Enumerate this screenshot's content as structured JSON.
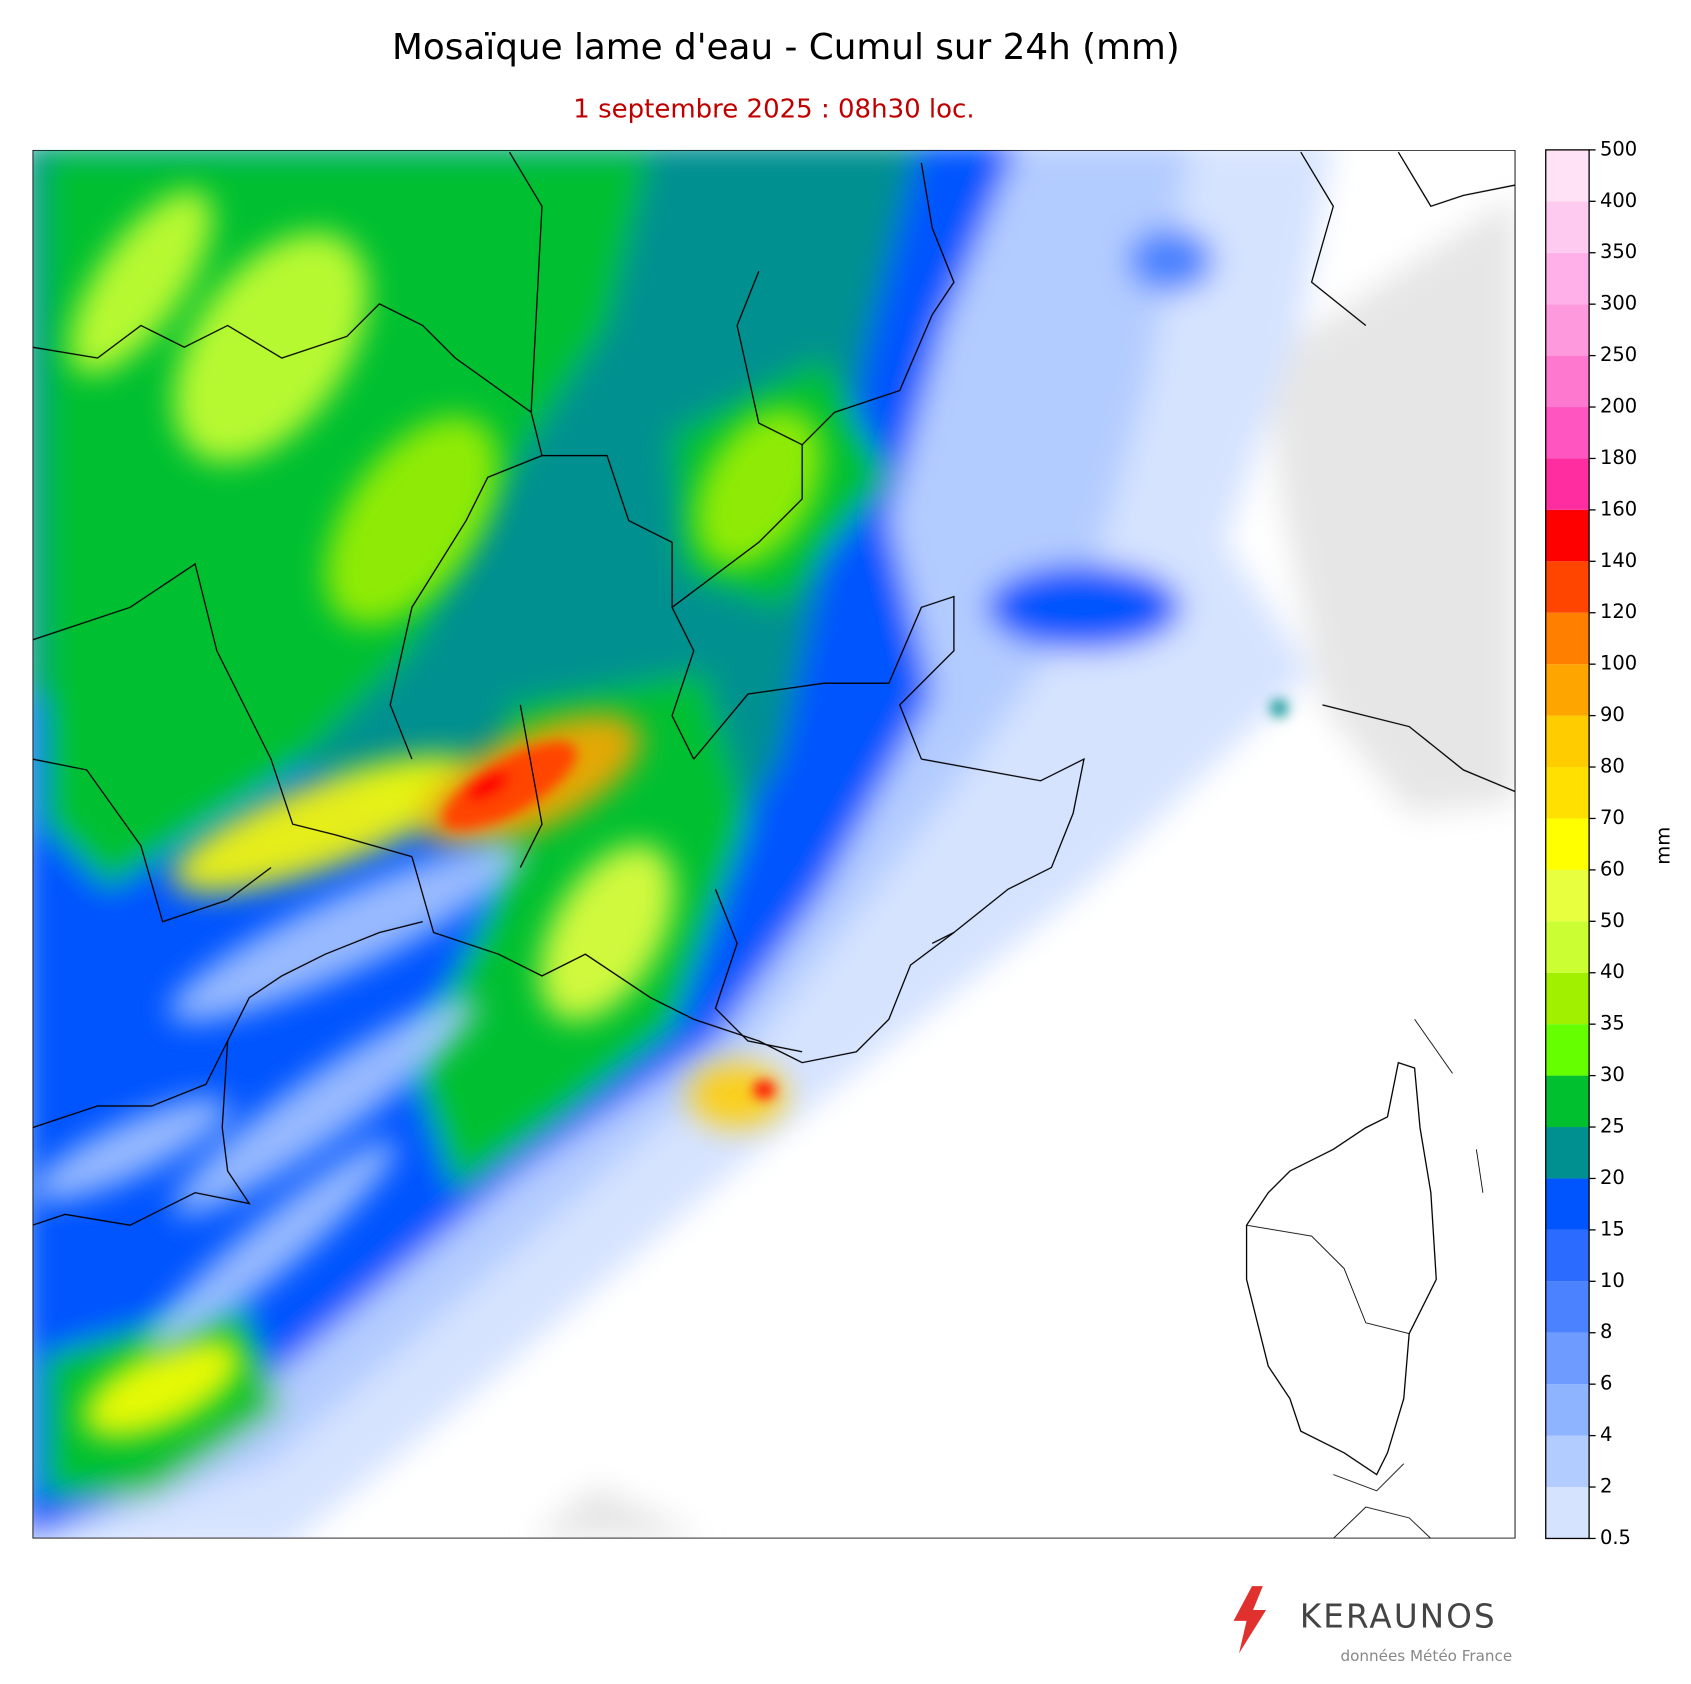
{
  "title": "Mosaïque lame d'eau - Cumul sur 24h (mm)",
  "subtitle": "1 septembre 2025 : 08h30 loc.",
  "colorbar": {
    "label": "mm",
    "ticks": [
      0.5,
      2,
      4,
      6,
      8,
      10,
      15,
      20,
      25,
      30,
      35,
      40,
      50,
      60,
      70,
      80,
      90,
      100,
      120,
      140,
      160,
      180,
      200,
      250,
      300,
      350,
      400,
      500
    ],
    "colors": [
      "#d5e3ff",
      "#b3ccff",
      "#8eb3ff",
      "#6d9bff",
      "#4a82ff",
      "#2b6bff",
      "#0055ff",
      "#009090",
      "#00c030",
      "#66ff00",
      "#a0f000",
      "#ccff33",
      "#e8ff40",
      "#ffff00",
      "#ffe000",
      "#ffcc00",
      "#ffa500",
      "#ff8000",
      "#ff4500",
      "#ff0000",
      "#ff2da0",
      "#ff55c0",
      "#ff78d0",
      "#ff99dd",
      "#ffb0e8",
      "#ffcaf0",
      "#ffe2f6",
      "#d3d3d3"
    ]
  },
  "logo": {
    "brand": "KERAUNOS",
    "credit": "données Météo France"
  }
}
